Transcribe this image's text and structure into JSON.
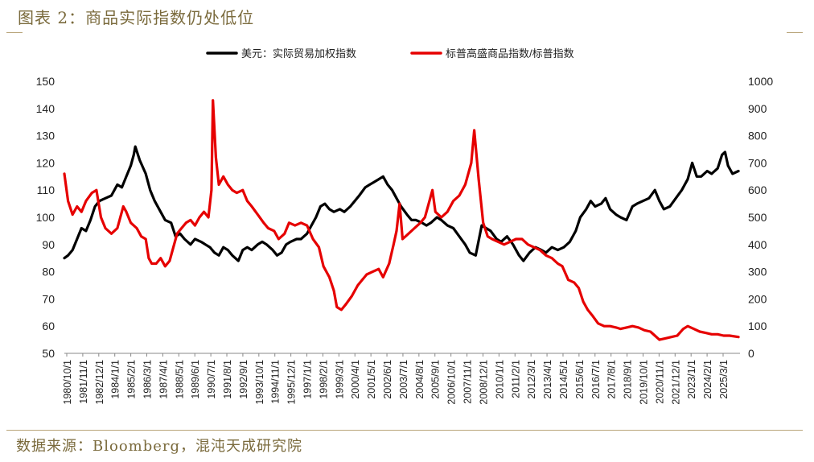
{
  "figure_title": "图表 2：商品实际指数仍处低位",
  "source": "数据来源：Bloomberg，混沌天成研究院",
  "chart_data": {
    "type": "line",
    "legend_position": "top-center",
    "grid": false,
    "x_tick_labels": [
      "1980/10/1",
      "1981/11/1",
      "1982/12/1",
      "1984/1/1",
      "1985/2/1",
      "1986/3/1",
      "1987/4/1",
      "1988/5/1",
      "1989/6/1",
      "1990/7/1",
      "1991/8/1",
      "1992/9/1",
      "1993/10/1",
      "1994/11/1",
      "1995/12/1",
      "1997/1/1",
      "1998/2/1",
      "1999/3/1",
      "2000/4/1",
      "2001/5/1",
      "2002/6/1",
      "2003/7/1",
      "2004/8/1",
      "2005/9/1",
      "2006/10/1",
      "2007/11/1",
      "2008/12/1",
      "2010/1/1",
      "2011/2/1",
      "2012/3/1",
      "2013/4/1",
      "2014/5/1",
      "2015/6/1",
      "2016/7/1",
      "2017/8/1",
      "2018/9/1",
      "2019/10/1",
      "2020/11/1",
      "2021/12/1",
      "2023/1/1",
      "2024/2/1",
      "2025/3/1"
    ],
    "y_left": {
      "ticks": [
        "50",
        "60",
        "70",
        "80",
        "90",
        "100",
        "110",
        "120",
        "130",
        "140",
        "150"
      ],
      "range": [
        50,
        150
      ]
    },
    "y_right": {
      "ticks": [
        "0",
        "100",
        "200",
        "300",
        "400",
        "500",
        "600",
        "700",
        "800",
        "900",
        "1000"
      ],
      "range": [
        0,
        1000
      ]
    },
    "series": [
      {
        "name": "美元：实际贸易加权指数",
        "color": "#000000",
        "axis": "left",
        "points": [
          [
            1980.75,
            85
          ],
          [
            1981.0,
            86
          ],
          [
            1981.3,
            88
          ],
          [
            1981.6,
            92
          ],
          [
            1981.9,
            96
          ],
          [
            1982.2,
            95
          ],
          [
            1982.5,
            99
          ],
          [
            1982.8,
            104
          ],
          [
            1983.1,
            106
          ],
          [
            1983.5,
            107
          ],
          [
            1983.9,
            108
          ],
          [
            1984.3,
            112
          ],
          [
            1984.6,
            111
          ],
          [
            1984.9,
            115
          ],
          [
            1985.2,
            119
          ],
          [
            1985.4,
            123
          ],
          [
            1985.5,
            126
          ],
          [
            1985.8,
            121
          ],
          [
            1986.2,
            116
          ],
          [
            1986.5,
            110
          ],
          [
            1986.8,
            106
          ],
          [
            1987.2,
            102
          ],
          [
            1987.5,
            99
          ],
          [
            1987.9,
            98
          ],
          [
            1988.2,
            93
          ],
          [
            1988.5,
            94
          ],
          [
            1988.8,
            92
          ],
          [
            1989.2,
            90
          ],
          [
            1989.5,
            92
          ],
          [
            1989.9,
            91
          ],
          [
            1990.2,
            90
          ],
          [
            1990.5,
            89
          ],
          [
            1990.8,
            87
          ],
          [
            1991.1,
            86
          ],
          [
            1991.4,
            89
          ],
          [
            1991.7,
            88
          ],
          [
            1992.0,
            86
          ],
          [
            1992.4,
            84
          ],
          [
            1992.7,
            88
          ],
          [
            1993.0,
            89
          ],
          [
            1993.3,
            88
          ],
          [
            1993.7,
            90
          ],
          [
            1994.0,
            91
          ],
          [
            1994.3,
            90
          ],
          [
            1994.7,
            88
          ],
          [
            1995.0,
            86
          ],
          [
            1995.3,
            87
          ],
          [
            1995.6,
            90
          ],
          [
            1995.9,
            91
          ],
          [
            1996.3,
            92
          ],
          [
            1996.6,
            92
          ],
          [
            1997.0,
            94
          ],
          [
            1997.3,
            97
          ],
          [
            1997.6,
            100
          ],
          [
            1997.9,
            104
          ],
          [
            1998.2,
            105
          ],
          [
            1998.5,
            103
          ],
          [
            1998.8,
            102
          ],
          [
            1999.2,
            103
          ],
          [
            1999.5,
            102
          ],
          [
            1999.9,
            104
          ],
          [
            2000.2,
            106
          ],
          [
            2000.5,
            108
          ],
          [
            2000.9,
            111
          ],
          [
            2001.2,
            112
          ],
          [
            2001.5,
            113
          ],
          [
            2001.8,
            114
          ],
          [
            2002.1,
            115
          ],
          [
            2002.4,
            112
          ],
          [
            2002.7,
            110
          ],
          [
            2003.0,
            107
          ],
          [
            2003.3,
            104
          ],
          [
            2003.7,
            101
          ],
          [
            2004.0,
            99
          ],
          [
            2004.3,
            99
          ],
          [
            2004.7,
            98
          ],
          [
            2005.0,
            97
          ],
          [
            2005.3,
            98
          ],
          [
            2005.7,
            100
          ],
          [
            2006.0,
            99
          ],
          [
            2006.4,
            97
          ],
          [
            2006.8,
            96
          ],
          [
            2007.2,
            93
          ],
          [
            2007.6,
            90
          ],
          [
            2007.9,
            87
          ],
          [
            2008.3,
            86
          ],
          [
            2008.7,
            97
          ],
          [
            2009.0,
            96
          ],
          [
            2009.3,
            95
          ],
          [
            2009.7,
            92
          ],
          [
            2010.0,
            91
          ],
          [
            2010.4,
            93
          ],
          [
            2010.8,
            90
          ],
          [
            2011.2,
            86
          ],
          [
            2011.5,
            84
          ],
          [
            2011.9,
            87
          ],
          [
            2012.3,
            89
          ],
          [
            2012.7,
            88
          ],
          [
            2013.0,
            87
          ],
          [
            2013.4,
            89
          ],
          [
            2013.8,
            88
          ],
          [
            2014.2,
            89
          ],
          [
            2014.6,
            91
          ],
          [
            2015.0,
            95
          ],
          [
            2015.3,
            100
          ],
          [
            2015.7,
            103
          ],
          [
            2016.0,
            106
          ],
          [
            2016.3,
            104
          ],
          [
            2016.7,
            105
          ],
          [
            2017.0,
            107
          ],
          [
            2017.3,
            103
          ],
          [
            2017.7,
            101
          ],
          [
            2018.0,
            100
          ],
          [
            2018.4,
            99
          ],
          [
            2018.8,
            104
          ],
          [
            2019.1,
            105
          ],
          [
            2019.5,
            106
          ],
          [
            2019.9,
            107
          ],
          [
            2020.3,
            110
          ],
          [
            2020.6,
            106
          ],
          [
            2020.9,
            103
          ],
          [
            2021.3,
            104
          ],
          [
            2021.7,
            107
          ],
          [
            2022.1,
            110
          ],
          [
            2022.5,
            114
          ],
          [
            2022.8,
            120
          ],
          [
            2023.1,
            115
          ],
          [
            2023.4,
            115
          ],
          [
            2023.8,
            117
          ],
          [
            2024.1,
            116
          ],
          [
            2024.5,
            118
          ],
          [
            2024.8,
            123
          ],
          [
            2025.0,
            124
          ],
          [
            2025.2,
            119
          ],
          [
            2025.5,
            116
          ],
          [
            2025.9,
            117
          ]
        ]
      },
      {
        "name": "标普高盛商品指数/标普指数",
        "color": "#e60000",
        "axis": "right",
        "points": [
          [
            1980.75,
            660
          ],
          [
            1981.0,
            560
          ],
          [
            1981.3,
            510
          ],
          [
            1981.6,
            540
          ],
          [
            1981.9,
            520
          ],
          [
            1982.2,
            560
          ],
          [
            1982.6,
            590
          ],
          [
            1982.9,
            600
          ],
          [
            1983.2,
            500
          ],
          [
            1983.5,
            460
          ],
          [
            1983.9,
            440
          ],
          [
            1984.3,
            460
          ],
          [
            1984.7,
            540
          ],
          [
            1984.9,
            520
          ],
          [
            1985.2,
            480
          ],
          [
            1985.6,
            460
          ],
          [
            1985.9,
            430
          ],
          [
            1986.2,
            420
          ],
          [
            1986.4,
            350
          ],
          [
            1986.6,
            330
          ],
          [
            1986.9,
            330
          ],
          [
            1987.2,
            350
          ],
          [
            1987.5,
            320
          ],
          [
            1987.8,
            340
          ],
          [
            1988.0,
            380
          ],
          [
            1988.3,
            440
          ],
          [
            1988.6,
            460
          ],
          [
            1988.9,
            480
          ],
          [
            1989.2,
            490
          ],
          [
            1989.5,
            470
          ],
          [
            1989.8,
            500
          ],
          [
            1990.1,
            520
          ],
          [
            1990.4,
            500
          ],
          [
            1990.6,
            600
          ],
          [
            1990.7,
            930
          ],
          [
            1990.9,
            720
          ],
          [
            1991.1,
            620
          ],
          [
            1991.4,
            650
          ],
          [
            1991.7,
            620
          ],
          [
            1992.0,
            600
          ],
          [
            1992.3,
            590
          ],
          [
            1992.7,
            600
          ],
          [
            1993.0,
            560
          ],
          [
            1993.3,
            540
          ],
          [
            1993.7,
            510
          ],
          [
            1994.1,
            480
          ],
          [
            1994.4,
            460
          ],
          [
            1994.8,
            450
          ],
          [
            1995.1,
            420
          ],
          [
            1995.5,
            440
          ],
          [
            1995.8,
            480
          ],
          [
            1996.2,
            470
          ],
          [
            1996.6,
            480
          ],
          [
            1997.0,
            470
          ],
          [
            1997.4,
            420
          ],
          [
            1997.8,
            390
          ],
          [
            1998.1,
            320
          ],
          [
            1998.5,
            280
          ],
          [
            1998.8,
            230
          ],
          [
            1999.0,
            170
          ],
          [
            1999.3,
            160
          ],
          [
            1999.6,
            180
          ],
          [
            2000.0,
            210
          ],
          [
            2000.4,
            250
          ],
          [
            2000.7,
            270
          ],
          [
            2001.0,
            290
          ],
          [
            2001.4,
            300
          ],
          [
            2001.8,
            310
          ],
          [
            2002.1,
            280
          ],
          [
            2002.5,
            330
          ],
          [
            2002.8,
            400
          ],
          [
            2003.0,
            450
          ],
          [
            2003.2,
            550
          ],
          [
            2003.4,
            420
          ],
          [
            2003.8,
            440
          ],
          [
            2004.2,
            460
          ],
          [
            2004.6,
            480
          ],
          [
            2004.9,
            500
          ],
          [
            2005.2,
            560
          ],
          [
            2005.4,
            600
          ],
          [
            2005.6,
            520
          ],
          [
            2006.0,
            500
          ],
          [
            2006.4,
            520
          ],
          [
            2006.8,
            560
          ],
          [
            2007.2,
            580
          ],
          [
            2007.6,
            620
          ],
          [
            2008.0,
            700
          ],
          [
            2008.2,
            820
          ],
          [
            2008.5,
            640
          ],
          [
            2008.8,
            480
          ],
          [
            2009.1,
            430
          ],
          [
            2009.4,
            420
          ],
          [
            2009.8,
            410
          ],
          [
            2010.2,
            400
          ],
          [
            2010.6,
            410
          ],
          [
            2011.0,
            420
          ],
          [
            2011.4,
            420
          ],
          [
            2011.8,
            400
          ],
          [
            2012.2,
            390
          ],
          [
            2012.6,
            380
          ],
          [
            2013.0,
            360
          ],
          [
            2013.4,
            350
          ],
          [
            2013.8,
            330
          ],
          [
            2014.1,
            320
          ],
          [
            2014.5,
            270
          ],
          [
            2014.9,
            260
          ],
          [
            2015.2,
            240
          ],
          [
            2015.5,
            190
          ],
          [
            2015.8,
            160
          ],
          [
            2016.1,
            140
          ],
          [
            2016.5,
            110
          ],
          [
            2016.9,
            100
          ],
          [
            2017.3,
            100
          ],
          [
            2017.7,
            95
          ],
          [
            2018.0,
            90
          ],
          [
            2018.4,
            95
          ],
          [
            2018.8,
            100
          ],
          [
            2019.2,
            95
          ],
          [
            2019.6,
            85
          ],
          [
            2020.0,
            80
          ],
          [
            2020.3,
            65
          ],
          [
            2020.6,
            50
          ],
          [
            2021.0,
            55
          ],
          [
            2021.4,
            60
          ],
          [
            2021.8,
            65
          ],
          [
            2022.2,
            90
          ],
          [
            2022.5,
            100
          ],
          [
            2022.9,
            90
          ],
          [
            2023.3,
            80
          ],
          [
            2023.7,
            75
          ],
          [
            2024.1,
            70
          ],
          [
            2024.5,
            70
          ],
          [
            2024.9,
            65
          ],
          [
            2025.3,
            65
          ],
          [
            2025.9,
            60
          ]
        ]
      }
    ]
  }
}
